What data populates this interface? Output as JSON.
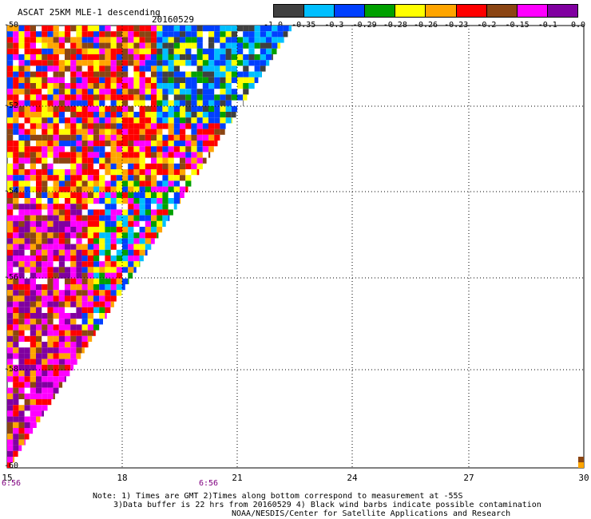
{
  "header": {
    "title": "ASCAT 25KM MLE-1 descending",
    "date": "20160529"
  },
  "colorbar": {
    "labels": [
      "-1.0",
      "-0.35",
      "-0.3",
      "-0.29",
      "-0.28",
      "-0.26",
      "-0.23",
      "-0.2",
      "-0.15",
      "-0.1",
      "0.0"
    ],
    "colors": [
      "#404040",
      "#00bfff",
      "#0040ff",
      "#00a000",
      "#ffff00",
      "#ffa500",
      "#ff0000",
      "#8b4513",
      "#ff00ff",
      "#8000a0"
    ]
  },
  "map": {
    "lat_labels": [
      "-50",
      "-52",
      "-54",
      "-56",
      "-58",
      "-60"
    ],
    "lon_labels": [
      "15",
      "18",
      "21",
      "24",
      "27",
      "30"
    ],
    "time_labels": [
      "6:56",
      "6:56"
    ],
    "lat_range": [
      -60,
      -50
    ],
    "lon_range": [
      15,
      30
    ],
    "grid": true
  },
  "notes": {
    "line1": "Note: 1) Times are GMT 2)Times along bottom correspond to measurement at -55S",
    "line2": "3)Data buffer is 22 hrs from 20160529 4) Black wind barbs indicate possible contamination",
    "line3": "NOAA/NESDIS/Center for Satellite Applications and Research"
  }
}
